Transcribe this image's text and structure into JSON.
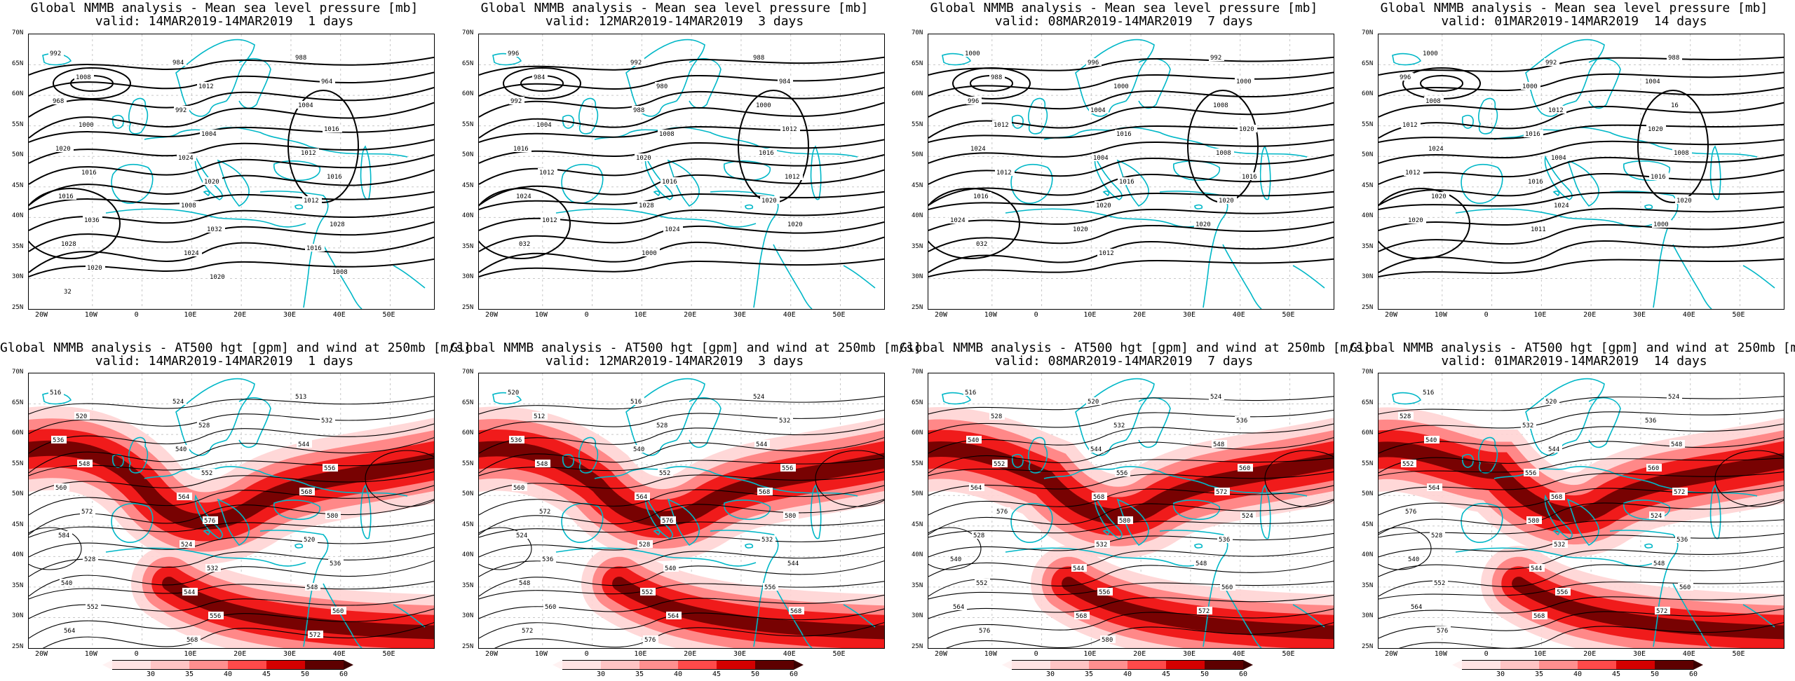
{
  "top_panels": [
    {
      "title1": "Global NMMB analysis - Mean sea level pressure [mb]",
      "title2": "valid: 14MAR2019-14MAR2019  1 days",
      "labels": [
        "992",
        "984",
        "988",
        "1008",
        "1012",
        "964",
        "968",
        "992",
        "1004",
        "1000",
        "1004",
        "1016",
        "1020",
        "1024",
        "1012",
        "1016",
        "1020",
        "1016",
        "1016",
        "1008",
        "1012",
        "1036",
        "1032",
        "1028",
        "1028",
        "1024",
        "1016",
        "1020",
        "1020",
        "1008",
        "32"
      ]
    },
    {
      "title1": "Global NMMB analysis - Mean sea level pressure [mb]",
      "title2": "valid: 12MAR2019-14MAR2019  3 days",
      "labels": [
        "996",
        "992",
        "988",
        "984",
        "980",
        "984",
        "992",
        "988",
        "1000",
        "1004",
        "1008",
        "1012",
        "1016",
        "1020",
        "1016",
        "1012",
        "1016",
        "1012",
        "1024",
        "1028",
        "1020",
        "1012",
        "1024",
        "1020",
        "032",
        "1000"
      ]
    },
    {
      "title1": "Global NMMB analysis - Mean sea level pressure [mb]",
      "title2": "valid: 08MAR2019-14MAR2019  7 days",
      "labels": [
        "1000",
        "996",
        "992",
        "988",
        "1000",
        "1000",
        "996",
        "1004",
        "1008",
        "1012",
        "1016",
        "1020",
        "1024",
        "1004",
        "1008",
        "1012",
        "1016",
        "1016",
        "1016",
        "1020",
        "1020",
        "1024",
        "1020",
        "1020",
        "032",
        "1012"
      ]
    },
    {
      "title1": "Global NMMB analysis - Mean sea level pressure [mb]",
      "title2": "valid: 01MAR2019-14MAR2019  14 days",
      "labels": [
        "1000",
        "992",
        "988",
        "996",
        "1000",
        "1004",
        "1008",
        "1012",
        "16",
        "1012",
        "1016",
        "1020",
        "1024",
        "1004",
        "1008",
        "1012",
        "1016",
        "1016",
        "1020",
        "1024",
        "1020",
        "1020",
        "1011",
        "1000"
      ]
    }
  ],
  "bottom_panels": [
    {
      "title1": "Global NMMB analysis - AT500 hgt [gpm] and wind at 250mb [m/s]",
      "title2": "valid: 14MAR2019-14MAR2019  1 days",
      "labels": [
        "516",
        "524",
        "513",
        "520",
        "528",
        "532",
        "536",
        "540",
        "544",
        "548",
        "552",
        "556",
        "560",
        "564",
        "568",
        "572",
        "576",
        "580",
        "584",
        "524",
        "520",
        "528",
        "532",
        "536",
        "540",
        "544",
        "548",
        "552",
        "556",
        "560",
        "564",
        "568",
        "572",
        "576",
        "580",
        "84"
      ]
    },
    {
      "title1": "Global NMMB analysis - AT500 hgt [gpm] and wind at 250mb [m/s]",
      "title2": "valid: 12MAR2019-14MAR2019  3 days",
      "labels": [
        "520",
        "516",
        "524",
        "512",
        "528",
        "532",
        "536",
        "540",
        "544",
        "548",
        "552",
        "556",
        "560",
        "564",
        "568",
        "572",
        "576",
        "580",
        "524",
        "528",
        "532",
        "536",
        "540",
        "544",
        "548",
        "552",
        "556",
        "560",
        "564",
        "568",
        "572",
        "576"
      ]
    },
    {
      "title1": "Global NMMB analysis - AT500 hgt [gpm] and wind at 250mb [m/s]",
      "title2": "valid: 08MAR2019-14MAR2019  7 days",
      "labels": [
        "516",
        "520",
        "524",
        "528",
        "532",
        "536",
        "540",
        "544",
        "548",
        "552",
        "556",
        "560",
        "564",
        "568",
        "572",
        "576",
        "580",
        "524",
        "528",
        "532",
        "536",
        "540",
        "544",
        "548",
        "552",
        "556",
        "560",
        "564",
        "568",
        "572",
        "576",
        "580"
      ]
    },
    {
      "title1": "Global NMMB analysis - AT500 hgt [gpm] and wind at 250mb [m/s]",
      "title2": "valid: 01MAR2019-14MAR2019  14 days",
      "labels": [
        "516",
        "520",
        "524",
        "528",
        "532",
        "536",
        "540",
        "544",
        "548",
        "552",
        "556",
        "560",
        "564",
        "568",
        "572",
        "576",
        "580",
        "524",
        "528",
        "532",
        "536",
        "540",
        "544",
        "548",
        "552",
        "556",
        "560",
        "564",
        "568",
        "572",
        "576"
      ]
    }
  ],
  "lat_ticks": [
    "70N",
    "65N",
    "60N",
    "55N",
    "50N",
    "45N",
    "40N",
    "35N",
    "30N",
    "25N"
  ],
  "lon_ticks": [
    "20W",
    "10W",
    "0",
    "10E",
    "20E",
    "30E",
    "40E",
    "50E"
  ],
  "colorbar_ticks": [
    "30",
    "35",
    "40",
    "45",
    "50",
    "60"
  ],
  "colors": {
    "contour": "#000000",
    "coast": "#00b7c7",
    "jet_light": "#ffd4d4",
    "jet_mid": "#ff8080",
    "jet_strong": "#ee1010",
    "jet_max": "#6a0000",
    "grid": "#c8c8c8"
  }
}
